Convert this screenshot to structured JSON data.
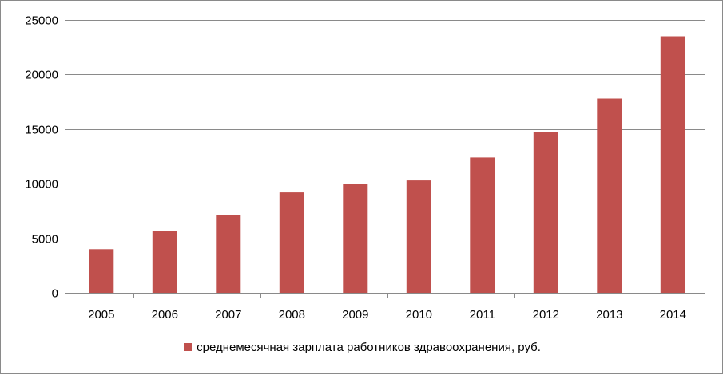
{
  "chart_data": {
    "type": "bar",
    "categories": [
      "2005",
      "2006",
      "2007",
      "2008",
      "2009",
      "2010",
      "2011",
      "2012",
      "2013",
      "2014"
    ],
    "series": [
      {
        "name": "среднемесячная зарплата работников здравоохранения, руб.",
        "values": [
          4000,
          5700,
          7100,
          9200,
          10000,
          10300,
          12400,
          14700,
          17800,
          23500
        ],
        "color": "#c0504d"
      }
    ],
    "ylim": [
      0,
      25000
    ],
    "yticks": [
      0,
      5000,
      10000,
      15000,
      20000,
      25000
    ],
    "grid": true,
    "legend_position": "bottom"
  }
}
